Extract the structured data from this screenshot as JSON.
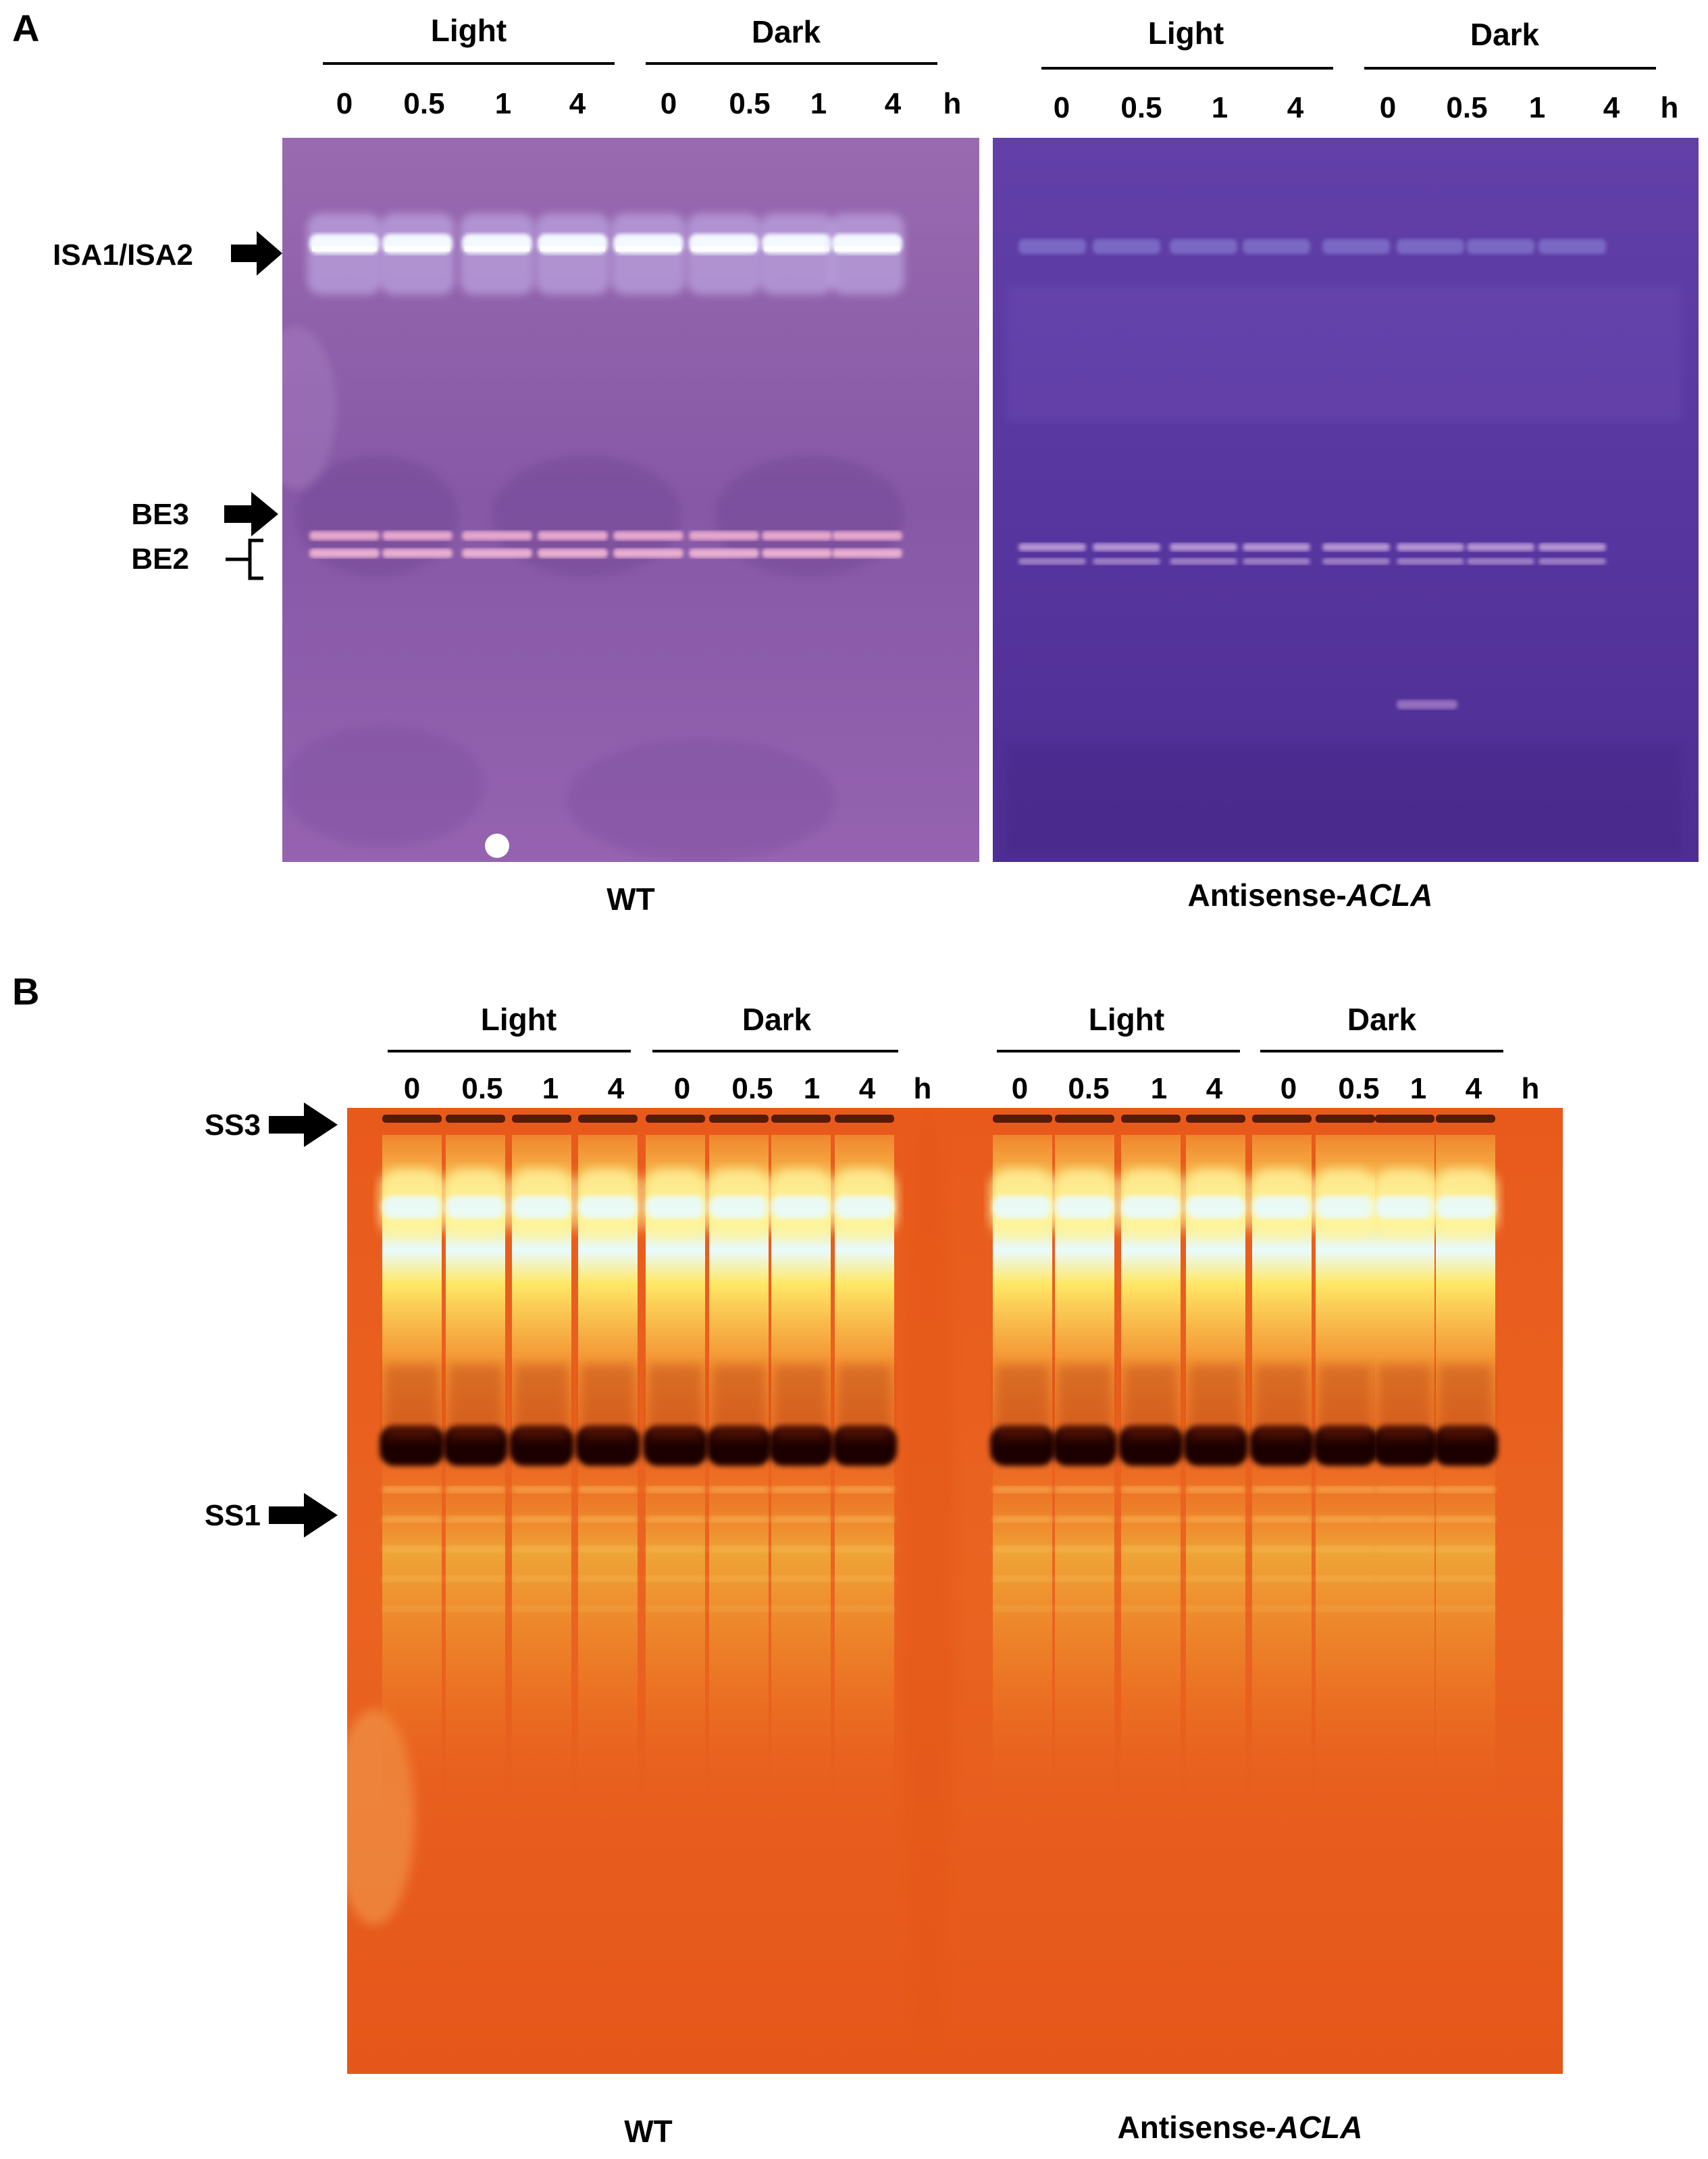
{
  "panel_a": {
    "letter": "A",
    "gels": [
      {
        "groups": [
          {
            "label": "Light",
            "lanes": [
              "0",
              "0.5",
              "1",
              "4"
            ]
          },
          {
            "label": "Dark",
            "lanes": [
              "0",
              "0.5",
              "1",
              "4"
            ]
          }
        ],
        "unit": "h",
        "sample_label": "WT"
      },
      {
        "groups": [
          {
            "label": "Light",
            "lanes": [
              "0",
              "0.5",
              "1",
              "4"
            ]
          },
          {
            "label": "Dark",
            "lanes": [
              "0",
              "0.5",
              "1",
              "4"
            ]
          }
        ],
        "unit": "h",
        "sample_prefix": "Antisense-",
        "sample_gene": "ACLA"
      }
    ],
    "band_labels": {
      "isa": "ISA1/ISA2",
      "be3": "BE3",
      "be2": "BE2"
    },
    "colors": {
      "gel_wt": "#8a5aa8",
      "gel_antisense": "#5a3a9e",
      "band_isa": "#eef4ff",
      "band_be": "#e8a6c8"
    }
  },
  "panel_b": {
    "letter": "B",
    "gels": [
      {
        "groups": [
          {
            "label": "Light",
            "lanes": [
              "0",
              "0.5",
              "1",
              "4"
            ]
          },
          {
            "label": "Dark",
            "lanes": [
              "0",
              "0.5",
              "1",
              "4"
            ]
          }
        ],
        "unit": "h",
        "sample_label": "WT"
      },
      {
        "groups": [
          {
            "label": "Light",
            "lanes": [
              "0",
              "0.5",
              "1",
              "4"
            ]
          },
          {
            "label": "Dark",
            "lanes": [
              "0",
              "0.5",
              "1",
              "4"
            ]
          }
        ],
        "unit": "h",
        "sample_prefix": "Antisense-",
        "sample_gene": "ACLA"
      }
    ],
    "band_labels": {
      "ss3": "SS3",
      "ss1": "SS1"
    },
    "colors": {
      "gel": "#e8581a",
      "band_ss3": "#fff6a0",
      "band_ss1": "#120400"
    }
  }
}
